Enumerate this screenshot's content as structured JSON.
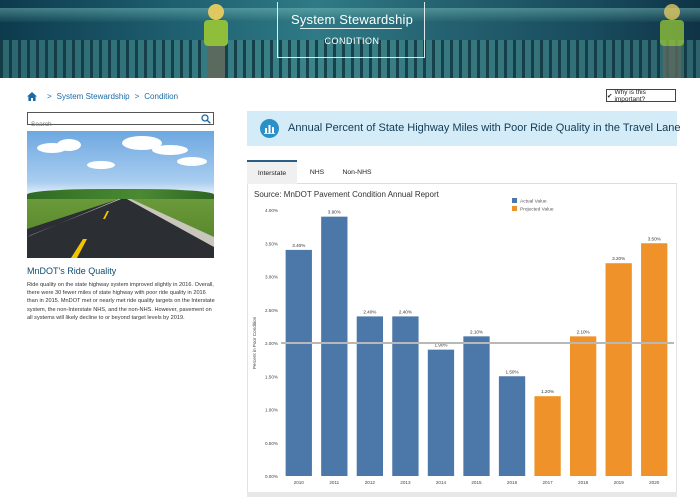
{
  "banner": {
    "title": "System Stewardship",
    "subtitle": "CONDITION"
  },
  "breadcrumb": {
    "home_icon": "home-icon",
    "items": [
      "System Stewardship",
      "Condition"
    ]
  },
  "why_button": {
    "icon": "check-icon",
    "label": "Why is this important?"
  },
  "search": {
    "placeholder": "Search",
    "icon": "search-icon"
  },
  "sidebar": {
    "heading": "MnDOT's Ride Quality",
    "body": "Ride quality on the state highway system improved slightly in 2016. Overall, there were 30 fewer miles of state highway with poor ride quality in 2016 than in 2015. MnDOT met or nearly met ride quality targets on the Interstate system, the non-Interstate NHS, and the non-NHS. However, pavement on all systems will likely decline to or beyond target levels by 2019."
  },
  "main": {
    "icon": "bar-chart-icon",
    "title": "Annual Percent of State Highway Miles with Poor Ride Quality in the Travel Lane",
    "tabs": [
      {
        "label": "Interstate",
        "active": true
      },
      {
        "label": "NHS",
        "active": false
      },
      {
        "label": "Non-NHS",
        "active": false
      }
    ]
  },
  "colors": {
    "actual": "#4b78a8",
    "projected": "#f0922a",
    "target_line": "#b8b8b8",
    "accent": "#2a90c8"
  },
  "chart_data": {
    "type": "bar",
    "source": "Source: MnDOT Pavement Condition Annual Report",
    "ylabel": "Percent in Poor Condition",
    "ylim": [
      0,
      4
    ],
    "yticks": [
      "0.00%",
      "0.50%",
      "1.00%",
      "1.50%",
      "2.00%",
      "2.50%",
      "3.00%",
      "3.50%",
      "4.00%"
    ],
    "target_line": 2.0,
    "legend_position": "top-right",
    "legend": [
      {
        "name": "Actual Value",
        "color": "#4b78a8"
      },
      {
        "name": "Projected Value",
        "color": "#f0922a"
      }
    ],
    "categories": [
      "2010",
      "2011",
      "2012",
      "2013",
      "2014",
      "2015",
      "2016",
      "2017",
      "2018",
      "2019",
      "2020"
    ],
    "values": [
      3.4,
      3.9,
      2.4,
      2.4,
      1.9,
      2.1,
      1.5,
      1.2,
      2.1,
      3.2,
      3.5
    ],
    "labels": [
      "3.40%",
      "3.90%",
      "2.40%",
      "2.40%",
      "1.90%",
      "2.10%",
      "1.50%",
      "1.20%",
      "2.10%",
      "3.20%",
      "3.50%"
    ],
    "kind": [
      "actual",
      "actual",
      "actual",
      "actual",
      "actual",
      "actual",
      "actual",
      "projected",
      "projected",
      "projected",
      "projected"
    ]
  }
}
